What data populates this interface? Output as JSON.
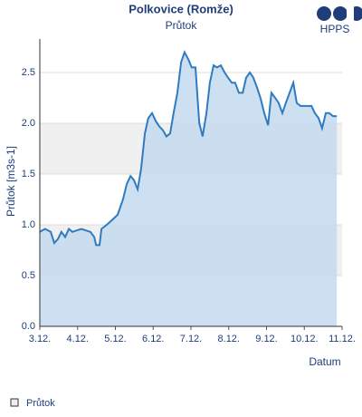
{
  "chart_data": {
    "type": "area",
    "title": "Polkovice (Romže)",
    "subtitle": "Průtok",
    "logo": "HPPS",
    "y_label": "Průtok [m3s-1]",
    "x_label": "Datum",
    "series": [
      {
        "name": "Průtok",
        "color": "#2f7bbf",
        "fill": "#c4dbf0",
        "x": [
          3.0,
          3.14,
          3.29,
          3.38,
          3.48,
          3.57,
          3.67,
          3.77,
          3.86,
          4.1,
          4.34,
          4.44,
          4.49,
          4.58,
          4.63,
          4.77,
          4.92,
          5.06,
          5.2,
          5.3,
          5.4,
          5.49,
          5.59,
          5.68,
          5.78,
          5.87,
          5.97,
          6.07,
          6.16,
          6.26,
          6.35,
          6.45,
          6.54,
          6.64,
          6.74,
          6.83,
          6.93,
          7.02,
          7.12,
          7.22,
          7.31,
          7.41,
          7.5,
          7.6,
          7.69,
          7.79,
          7.89,
          7.98,
          8.08,
          8.17,
          8.27,
          8.37,
          8.46,
          8.56,
          8.65,
          8.75,
          8.84,
          8.94,
          9.04,
          9.13,
          9.23,
          9.32,
          9.42,
          9.51,
          9.61,
          9.71,
          9.8,
          9.9,
          9.99,
          10.09,
          10.19,
          10.28,
          10.38,
          10.47,
          10.57,
          10.66,
          10.76,
          10.86
        ],
        "values": [
          0.93,
          0.96,
          0.93,
          0.82,
          0.86,
          0.93,
          0.88,
          0.96,
          0.93,
          0.96,
          0.93,
          0.88,
          0.8,
          0.8,
          0.96,
          1.0,
          1.05,
          1.1,
          1.25,
          1.4,
          1.48,
          1.44,
          1.35,
          1.55,
          1.9,
          2.05,
          2.1,
          2.02,
          1.97,
          1.93,
          1.87,
          1.9,
          2.1,
          2.3,
          2.6,
          2.7,
          2.63,
          2.55,
          2.55,
          2.0,
          1.87,
          2.1,
          2.4,
          2.57,
          2.55,
          2.57,
          2.5,
          2.45,
          2.4,
          2.4,
          2.3,
          2.3,
          2.45,
          2.5,
          2.45,
          2.35,
          2.25,
          2.1,
          1.98,
          2.3,
          2.25,
          2.2,
          2.1,
          2.2,
          2.3,
          2.4,
          2.2,
          2.17,
          2.17,
          2.17,
          2.17,
          2.1,
          2.05,
          1.95,
          2.1,
          2.1,
          2.07,
          2.07
        ]
      }
    ],
    "xlim": [
      3,
      11
    ],
    "xticks": [
      {
        "value": 3,
        "label": "3.12."
      },
      {
        "value": 4,
        "label": "4.12."
      },
      {
        "value": 5,
        "label": "5.12."
      },
      {
        "value": 6,
        "label": "6.12."
      },
      {
        "value": 7,
        "label": "7.12."
      },
      {
        "value": 8,
        "label": "8.12."
      },
      {
        "value": 9,
        "label": "9.12."
      },
      {
        "value": 10,
        "label": "10.12."
      },
      {
        "value": 11,
        "label": "11.12."
      }
    ],
    "ylim": [
      0,
      2.83
    ],
    "yticks": [
      {
        "value": 0,
        "label": "0.0"
      },
      {
        "value": 0.5,
        "label": "0.5"
      },
      {
        "value": 1,
        "label": "1.0"
      },
      {
        "value": 1.5,
        "label": "1.5"
      },
      {
        "value": 2,
        "label": "2.0"
      },
      {
        "value": 2.5,
        "label": "2.5"
      }
    ],
    "grid": "bands"
  }
}
